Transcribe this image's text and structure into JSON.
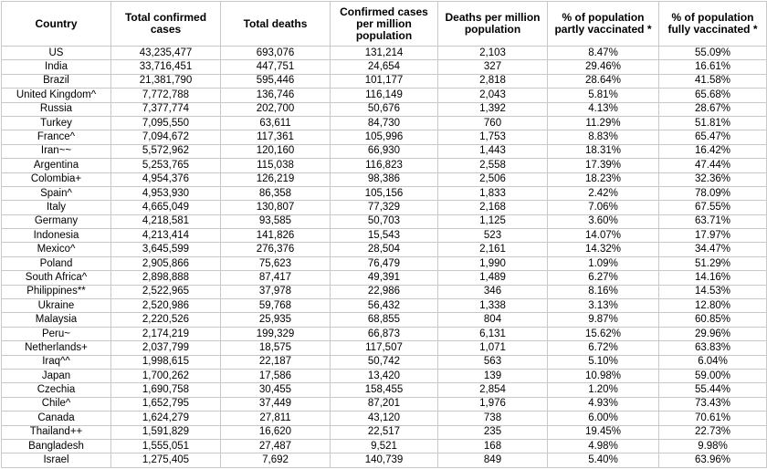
{
  "table": {
    "headers": [
      "Country",
      "Total confirmed cases",
      "Total deaths",
      "Confirmed cases per million population",
      "Deaths per million population",
      "% of population partly vaccinated *",
      "% of population fully vaccinated *"
    ],
    "rows": [
      [
        "US",
        "43,235,477",
        "693,076",
        "131,214",
        "2,103",
        "8.47%",
        "55.09%"
      ],
      [
        "India",
        "33,716,451",
        "447,751",
        "24,654",
        "327",
        "29.46%",
        "16.61%"
      ],
      [
        "Brazil",
        "21,381,790",
        "595,446",
        "101,177",
        "2,818",
        "28.64%",
        "41.58%"
      ],
      [
        "United Kingdom^",
        "7,772,788",
        "136,746",
        "116,149",
        "2,043",
        "5.81%",
        "65.68%"
      ],
      [
        "Russia",
        "7,377,774",
        "202,700",
        "50,676",
        "1,392",
        "4.13%",
        "28.67%"
      ],
      [
        "Turkey",
        "7,095,550",
        "63,611",
        "84,730",
        "760",
        "11.29%",
        "51.81%"
      ],
      [
        "France^",
        "7,094,672",
        "117,361",
        "105,996",
        "1,753",
        "8.83%",
        "65.47%"
      ],
      [
        "Iran~~",
        "5,572,962",
        "120,160",
        "66,930",
        "1,443",
        "18.31%",
        "16.42%"
      ],
      [
        "Argentina",
        "5,253,765",
        "115,038",
        "116,823",
        "2,558",
        "17.39%",
        "47.44%"
      ],
      [
        "Colombia+",
        "4,954,376",
        "126,219",
        "98,386",
        "2,506",
        "18.23%",
        "32.36%"
      ],
      [
        "Spain^",
        "4,953,930",
        "86,358",
        "105,156",
        "1,833",
        "2.42%",
        "78.09%"
      ],
      [
        "Italy",
        "4,665,049",
        "130,807",
        "77,329",
        "2,168",
        "7.06%",
        "67.55%"
      ],
      [
        "Germany",
        "4,218,581",
        "93,585",
        "50,703",
        "1,125",
        "3.60%",
        "63.71%"
      ],
      [
        "Indonesia",
        "4,213,414",
        "141,826",
        "15,543",
        "523",
        "14.07%",
        "17.97%"
      ],
      [
        "Mexico^",
        "3,645,599",
        "276,376",
        "28,504",
        "2,161",
        "14.32%",
        "34.47%"
      ],
      [
        "Poland",
        "2,905,866",
        "75,623",
        "76,479",
        "1,990",
        "1.09%",
        "51.29%"
      ],
      [
        "South Africa^",
        "2,898,888",
        "87,417",
        "49,391",
        "1,489",
        "6.27%",
        "14.16%"
      ],
      [
        "Philippines**",
        "2,522,965",
        "37,978",
        "22,986",
        "346",
        "8.16%",
        "14.53%"
      ],
      [
        "Ukraine",
        "2,520,986",
        "59,768",
        "56,432",
        "1,338",
        "3.13%",
        "12.80%"
      ],
      [
        "Malaysia",
        "2,220,526",
        "25,935",
        "68,855",
        "804",
        "9.87%",
        "60.85%"
      ],
      [
        "Peru~",
        "2,174,219",
        "199,329",
        "66,873",
        "6,131",
        "15.62%",
        "29.96%"
      ],
      [
        "Netherlands+",
        "2,037,799",
        "18,575",
        "117,507",
        "1,071",
        "6.72%",
        "63.83%"
      ],
      [
        "Iraq^^",
        "1,998,615",
        "22,187",
        "50,742",
        "563",
        "5.10%",
        "6.04%"
      ],
      [
        "Japan",
        "1,700,262",
        "17,586",
        "13,420",
        "139",
        "10.98%",
        "59.00%"
      ],
      [
        "Czechia",
        "1,690,758",
        "30,455",
        "158,455",
        "2,854",
        "1.20%",
        "55.44%"
      ],
      [
        "Chile^",
        "1,652,795",
        "37,449",
        "87,201",
        "1,976",
        "4.93%",
        "73.43%"
      ],
      [
        "Canada",
        "1,624,279",
        "27,811",
        "43,120",
        "738",
        "6.00%",
        "70.61%"
      ],
      [
        "Thailand++",
        "1,591,829",
        "16,620",
        "22,517",
        "235",
        "19.45%",
        "22.73%"
      ],
      [
        "Bangladesh",
        "1,555,051",
        "27,487",
        "9,521",
        "168",
        "4.98%",
        "9.98%"
      ],
      [
        "Israel",
        "1,275,405",
        "7,692",
        "140,739",
        "849",
        "5.40%",
        "63.96%"
      ]
    ]
  }
}
